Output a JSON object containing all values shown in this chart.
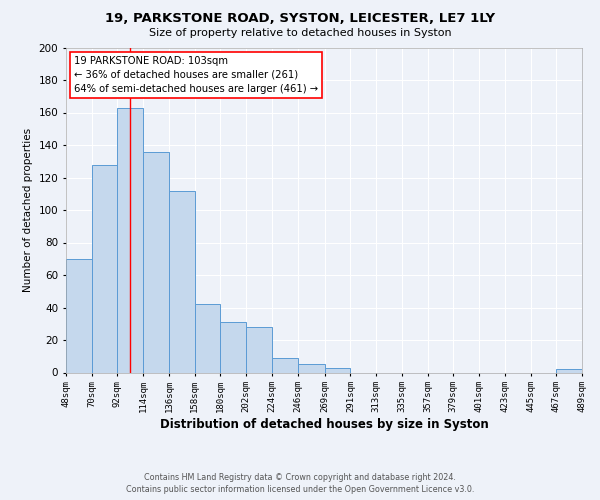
{
  "title1": "19, PARKSTONE ROAD, SYSTON, LEICESTER, LE7 1LY",
  "title2": "Size of property relative to detached houses in Syston",
  "xlabel": "Distribution of detached houses by size in Syston",
  "ylabel": "Number of detached properties",
  "bar_left_edges": [
    48,
    70,
    92,
    114,
    136,
    158,
    180,
    202,
    224,
    246,
    269,
    291,
    313,
    335,
    357,
    379,
    401,
    423,
    445,
    467
  ],
  "bar_widths": [
    22,
    22,
    22,
    22,
    22,
    22,
    22,
    22,
    22,
    23,
    22,
    22,
    22,
    22,
    22,
    22,
    22,
    22,
    22,
    22
  ],
  "bar_heights": [
    70,
    128,
    163,
    136,
    112,
    42,
    31,
    28,
    9,
    5,
    3,
    0,
    0,
    0,
    0,
    0,
    0,
    0,
    0,
    2
  ],
  "bar_color": "#c5d8ed",
  "bar_edge_color": "#5b9bd5",
  "xlim": [
    48,
    489
  ],
  "ylim": [
    0,
    200
  ],
  "yticks": [
    0,
    20,
    40,
    60,
    80,
    100,
    120,
    140,
    160,
    180,
    200
  ],
  "xtick_labels": [
    "48sqm",
    "70sqm",
    "92sqm",
    "114sqm",
    "136sqm",
    "158sqm",
    "180sqm",
    "202sqm",
    "224sqm",
    "246sqm",
    "269sqm",
    "291sqm",
    "313sqm",
    "335sqm",
    "357sqm",
    "379sqm",
    "401sqm",
    "423sqm",
    "445sqm",
    "467sqm",
    "489sqm"
  ],
  "xtick_positions": [
    48,
    70,
    92,
    114,
    136,
    158,
    180,
    202,
    224,
    246,
    269,
    291,
    313,
    335,
    357,
    379,
    401,
    423,
    445,
    467,
    489
  ],
  "red_line_x": 103,
  "annotation_line1": "19 PARKSTONE ROAD: 103sqm",
  "annotation_line2": "← 36% of detached houses are smaller (261)",
  "annotation_line3": "64% of semi-detached houses are larger (461) →",
  "background_color": "#eef2f9",
  "grid_color": "#ffffff",
  "footer1": "Contains HM Land Registry data © Crown copyright and database right 2024.",
  "footer2": "Contains public sector information licensed under the Open Government Licence v3.0."
}
